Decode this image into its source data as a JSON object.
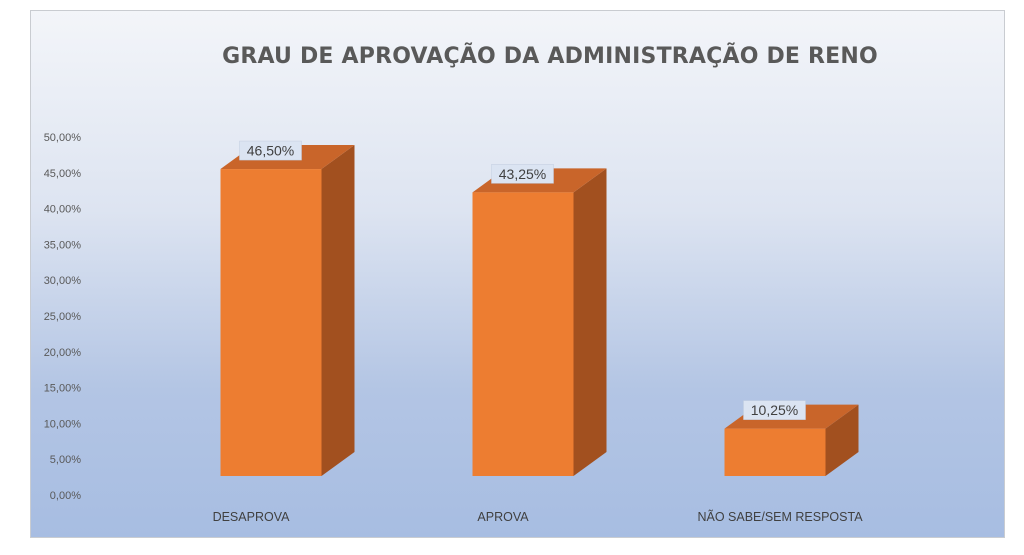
{
  "chart_data": {
    "type": "bar",
    "title": "GRAU DE APROVAÇÃO DA ADMINISTRAÇÃO DE RENO",
    "categories": [
      "DESAPROVA",
      "APROVA",
      "NÃO SABE/SEM RESPOSTA"
    ],
    "values": [
      46.5,
      43.25,
      10.25
    ],
    "data_labels": [
      "46,50%",
      "43,25%",
      "10,25%"
    ],
    "y_ticks": [
      "0,00%",
      "5,00%",
      "10,00%",
      "15,00%",
      "20,00%",
      "25,00%",
      "30,00%",
      "35,00%",
      "40,00%",
      "45,00%",
      "50,00%"
    ],
    "ylim": [
      0,
      50
    ],
    "xlabel": "",
    "ylabel": "",
    "grid": false,
    "style": "3d-column",
    "colors": {
      "front": "#ed7d31",
      "side": "#a2501f",
      "top": "#c9652a",
      "label_bg": "#dbe4f2"
    }
  }
}
